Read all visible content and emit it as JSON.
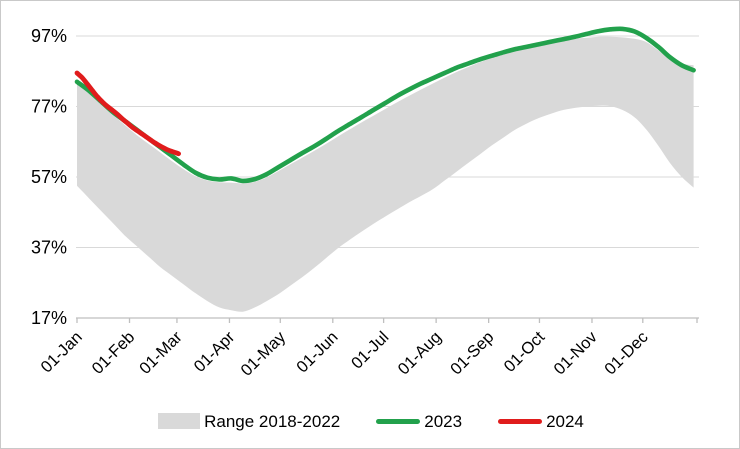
{
  "figure": {
    "background": "#FFFFFF",
    "border_color": "#C9C9C9"
  },
  "legend": {
    "items": [
      {
        "label": "Range 2018-2022",
        "swatch": "box",
        "color": "#D9D9D9"
      },
      {
        "label": "2023",
        "swatch": "line",
        "color": "#22A14C"
      },
      {
        "label": "2024",
        "swatch": "line",
        "color": "#E01C1C"
      }
    ]
  },
  "chart_data": {
    "type": "line",
    "title": "",
    "xlabel": "",
    "ylabel": "",
    "grid": "horizontal",
    "legend_position": "bottom",
    "gridline_color": "#D9D9D9",
    "axis_color": "#BFBFBF",
    "text_color": "#000000",
    "ylim": [
      17,
      103
    ],
    "y_axis": {
      "tick_labels": [
        "97%",
        "77%",
        "57%",
        "37%",
        "17%"
      ],
      "tick_values": [
        97,
        77,
        57,
        37,
        17
      ]
    },
    "x_axis": {
      "tick_labels": [
        "01-Jan",
        "01-Feb",
        "01-Mar",
        "01-Apr",
        "01-May",
        "01-Jun",
        "01-Jul",
        "01-Aug",
        "01-Sep",
        "01-Oct",
        "01-Nov",
        "01-Dec"
      ],
      "month_start_days": [
        0,
        31,
        59,
        90,
        120,
        151,
        181,
        212,
        243,
        273,
        304,
        334
      ],
      "end_tick_day": 366
    },
    "band": {
      "name": "Range 2018-2022",
      "color": "#D9D9D9",
      "days": [
        0,
        7,
        14,
        21,
        28,
        35,
        42,
        49,
        56,
        63,
        70,
        77,
        84,
        91,
        98,
        105,
        112,
        119,
        126,
        133,
        140,
        147,
        154,
        161,
        168,
        175,
        182,
        189,
        196,
        203,
        210,
        217,
        224,
        231,
        238,
        245,
        252,
        259,
        266,
        273,
        280,
        287,
        294,
        301,
        308,
        315,
        322,
        329,
        336,
        343,
        350,
        357,
        364
      ],
      "top": [
        84,
        81,
        78,
        74.8,
        71.8,
        69,
        66.5,
        64,
        61.5,
        59.2,
        57.2,
        56,
        55.5,
        55.4,
        55.2,
        55.6,
        56.9,
        58.7,
        60.6,
        62.5,
        64.4,
        66.4,
        68.5,
        70.5,
        72.5,
        74.4,
        76.3,
        78.2,
        80,
        81.8,
        83.5,
        85.2,
        86.8,
        88.2,
        89.6,
        90.8,
        92,
        93,
        93.8,
        94.5,
        95.1,
        95.7,
        96.2,
        96.5,
        96.8,
        96.8,
        96.6,
        96.2,
        95.3,
        93,
        90.5,
        89.2,
        88.7
      ],
      "bottom": [
        54.5,
        51,
        47.5,
        44,
        40.5,
        37.5,
        34.5,
        31.5,
        29,
        26.5,
        24,
        21.8,
        20,
        19.2,
        18.8,
        20,
        21.8,
        23.8,
        26.2,
        28.6,
        31.2,
        34,
        36.8,
        39.2,
        41.5,
        43.7,
        45.8,
        47.8,
        49.8,
        51.6,
        53.5,
        56,
        58.5,
        61,
        63.5,
        66,
        68.3,
        70.5,
        72.3,
        73.8,
        75,
        76,
        76.6,
        77,
        77.2,
        77.1,
        76,
        74,
        70.5,
        66,
        61,
        57,
        54
      ]
    },
    "series": [
      {
        "name": "2023",
        "color": "#22A14C",
        "line_width": 4.6,
        "days": [
          0,
          7,
          14,
          21,
          28,
          35,
          42,
          49,
          56,
          63,
          70,
          77,
          84,
          91,
          98,
          105,
          112,
          119,
          126,
          133,
          140,
          147,
          154,
          161,
          168,
          175,
          182,
          189,
          196,
          203,
          210,
          217,
          224,
          231,
          238,
          245,
          252,
          259,
          266,
          273,
          280,
          287,
          294,
          301,
          308,
          315,
          322,
          329,
          336,
          343,
          350,
          357,
          364
        ],
        "values": [
          84,
          81.5,
          78.5,
          75.5,
          73,
          70.5,
          68,
          65.5,
          63,
          60.5,
          58.2,
          56.8,
          56.3,
          56.6,
          55.9,
          56.4,
          57.8,
          59.8,
          61.8,
          63.8,
          65.7,
          67.8,
          70,
          72,
          74,
          76,
          78,
          80,
          81.8,
          83.5,
          85,
          86.5,
          88,
          89.2,
          90.4,
          91.4,
          92.4,
          93.3,
          94,
          94.7,
          95.4,
          96.1,
          96.8,
          97.6,
          98.4,
          98.9,
          99,
          98.3,
          96.5,
          94,
          91,
          88.7,
          87.3
        ]
      },
      {
        "name": "2024",
        "color": "#E01C1C",
        "line_width": 4.8,
        "days": [
          0,
          3,
          6,
          9,
          12,
          15,
          18,
          21,
          24,
          27,
          30,
          33,
          36,
          39,
          42,
          45,
          48,
          51,
          54,
          57,
          60
        ],
        "values": [
          86.5,
          85.2,
          83.4,
          81.6,
          79.8,
          78.3,
          77,
          75.9,
          74.7,
          73.4,
          72.2,
          71,
          70,
          69,
          68,
          67,
          66.1,
          65.3,
          64.6,
          64.1,
          63.6
        ]
      }
    ]
  }
}
